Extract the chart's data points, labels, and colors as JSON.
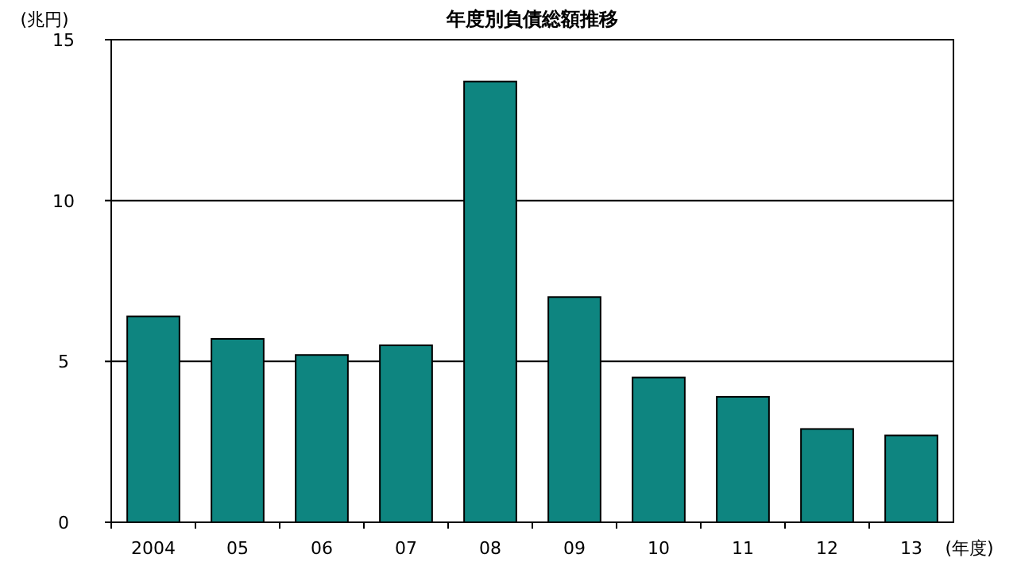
{
  "chart_data": {
    "type": "bar",
    "title": "年度別負債総額推移",
    "ylabel": "(兆円)",
    "xlabel": "(年度)",
    "categories": [
      "2004",
      "05",
      "06",
      "07",
      "08",
      "09",
      "10",
      "11",
      "12",
      "13"
    ],
    "values": [
      6.4,
      5.7,
      5.2,
      5.5,
      13.7,
      7.0,
      4.5,
      3.9,
      2.9,
      2.7
    ],
    "color": "#0e8580",
    "ylim": [
      0,
      15
    ],
    "yticks": [
      0,
      5,
      10,
      15
    ],
    "grid": "y"
  }
}
